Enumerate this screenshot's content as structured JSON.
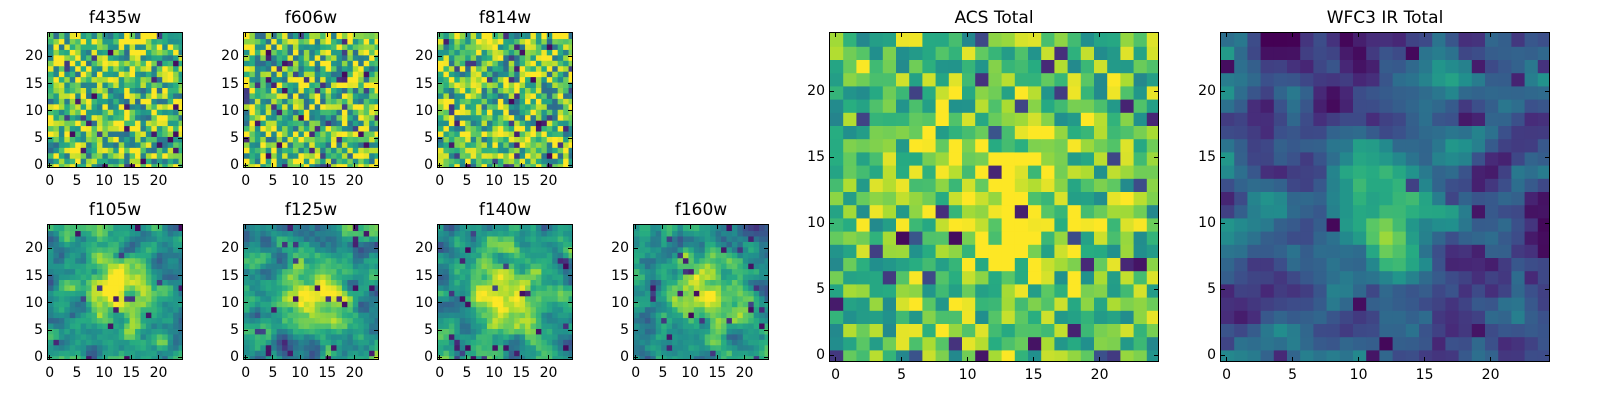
{
  "chart_data": [
    {
      "type": "heatmap",
      "title": "f435w",
      "colormap": "viridis",
      "grid_size": 25,
      "xticks": [
        "0",
        "5",
        "10",
        "15",
        "20"
      ],
      "yticks": [
        "0",
        "5",
        "10",
        "15",
        "20"
      ],
      "xlim": [
        -0.5,
        24.5
      ],
      "ylim": [
        -0.5,
        24.5
      ],
      "grid": false,
      "pattern": "noise"
    },
    {
      "type": "heatmap",
      "title": "f606w",
      "colormap": "viridis",
      "grid_size": 25,
      "xticks": [
        "0",
        "5",
        "10",
        "15",
        "20"
      ],
      "yticks": [
        "0",
        "5",
        "10",
        "15",
        "20"
      ],
      "xlim": [
        -0.5,
        24.5
      ],
      "ylim": [
        -0.5,
        24.5
      ],
      "grid": false,
      "pattern": "noise"
    },
    {
      "type": "heatmap",
      "title": "f814w",
      "colormap": "viridis",
      "grid_size": 25,
      "xticks": [
        "0",
        "5",
        "10",
        "15",
        "20"
      ],
      "yticks": [
        "0",
        "5",
        "10",
        "15",
        "20"
      ],
      "xlim": [
        -0.5,
        24.5
      ],
      "ylim": [
        -0.5,
        24.5
      ],
      "grid": false,
      "pattern": "noise"
    },
    {
      "type": "heatmap",
      "title": "f105w",
      "colormap": "viridis",
      "grid_size": 25,
      "xticks": [
        "0",
        "5",
        "10",
        "15",
        "20"
      ],
      "yticks": [
        "0",
        "5",
        "10",
        "15",
        "20"
      ],
      "xlim": [
        -0.5,
        24.5
      ],
      "ylim": [
        -0.5,
        24.5
      ],
      "grid": false,
      "pattern": "central_blob"
    },
    {
      "type": "heatmap",
      "title": "f125w",
      "colormap": "viridis",
      "grid_size": 25,
      "xticks": [
        "0",
        "5",
        "10",
        "15",
        "20"
      ],
      "yticks": [
        "0",
        "5",
        "10",
        "15",
        "20"
      ],
      "xlim": [
        -0.5,
        24.5
      ],
      "ylim": [
        -0.5,
        24.5
      ],
      "grid": false,
      "pattern": "central_blob"
    },
    {
      "type": "heatmap",
      "title": "f140w",
      "colormap": "viridis",
      "grid_size": 25,
      "xticks": [
        "0",
        "5",
        "10",
        "15",
        "20"
      ],
      "yticks": [
        "0",
        "5",
        "10",
        "15",
        "20"
      ],
      "xlim": [
        -0.5,
        24.5
      ],
      "ylim": [
        -0.5,
        24.5
      ],
      "grid": false,
      "pattern": "central_blob"
    },
    {
      "type": "heatmap",
      "title": "f160w",
      "colormap": "viridis",
      "grid_size": 25,
      "xticks": [
        "0",
        "5",
        "10",
        "15",
        "20"
      ],
      "yticks": [
        "0",
        "5",
        "10",
        "15",
        "20"
      ],
      "xlim": [
        -0.5,
        24.5
      ],
      "ylim": [
        -0.5,
        24.5
      ],
      "grid": false,
      "pattern": "central_blob"
    },
    {
      "type": "heatmap",
      "title": "ACS Total",
      "colormap": "viridis",
      "grid_size": 25,
      "xticks": [
        "0",
        "5",
        "10",
        "15",
        "20"
      ],
      "yticks": [
        "0",
        "5",
        "10",
        "15",
        "20"
      ],
      "xlim": [
        -0.5,
        24.5
      ],
      "ylim": [
        -0.5,
        24.5
      ],
      "grid": false,
      "pattern": "noise_central"
    },
    {
      "type": "heatmap",
      "title": "WFC3 IR Total",
      "colormap": "viridis",
      "grid_size": 25,
      "xticks": [
        "0",
        "5",
        "10",
        "15",
        "20"
      ],
      "yticks": [
        "0",
        "5",
        "10",
        "15",
        "20"
      ],
      "xlim": [
        -0.5,
        24.5
      ],
      "ylim": [
        -0.5,
        24.5
      ],
      "grid": false,
      "pattern": "central_elongated"
    }
  ]
}
